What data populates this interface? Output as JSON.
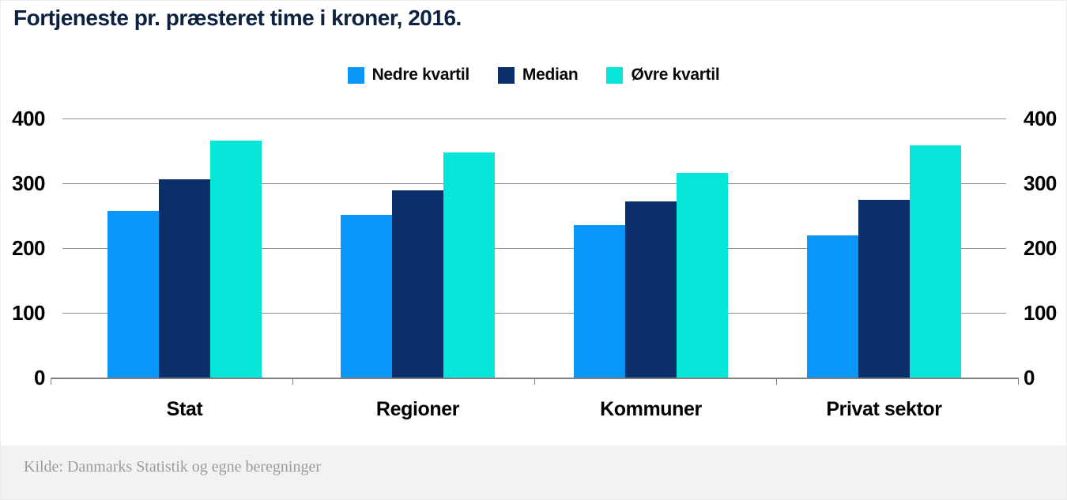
{
  "chart_data": {
    "type": "bar",
    "title": "Fortjeneste pr. præsteret time i kroner, 2016.",
    "categories": [
      "Stat",
      "Regioner",
      "Kommuner",
      "Privat sektor"
    ],
    "series": [
      {
        "name": "Nedre kvartil",
        "color": "#0A96F8",
        "values": [
          257,
          251,
          235,
          220
        ]
      },
      {
        "name": "Median",
        "color": "#0B2F6B",
        "values": [
          306,
          289,
          272,
          274
        ]
      },
      {
        "name": "Øvre kvartil",
        "color": "#06E6D8",
        "values": [
          366,
          348,
          316,
          359
        ]
      }
    ],
    "y_axis": {
      "min": 0,
      "max": 400,
      "ticks": [
        0,
        100,
        200,
        300,
        400
      ],
      "label_sides": "both"
    },
    "grid": true,
    "legend_position": "top-center",
    "source": "Kilde: Danmarks Statistik og egne beregninger",
    "colors": {
      "gridline": "#8c8c8c",
      "axis": "#808080",
      "title_text": "#0d2240",
      "tick_label_text": "#000000",
      "footer_background": "#f2f2f2",
      "footer_text": "#9c9c9c"
    }
  }
}
